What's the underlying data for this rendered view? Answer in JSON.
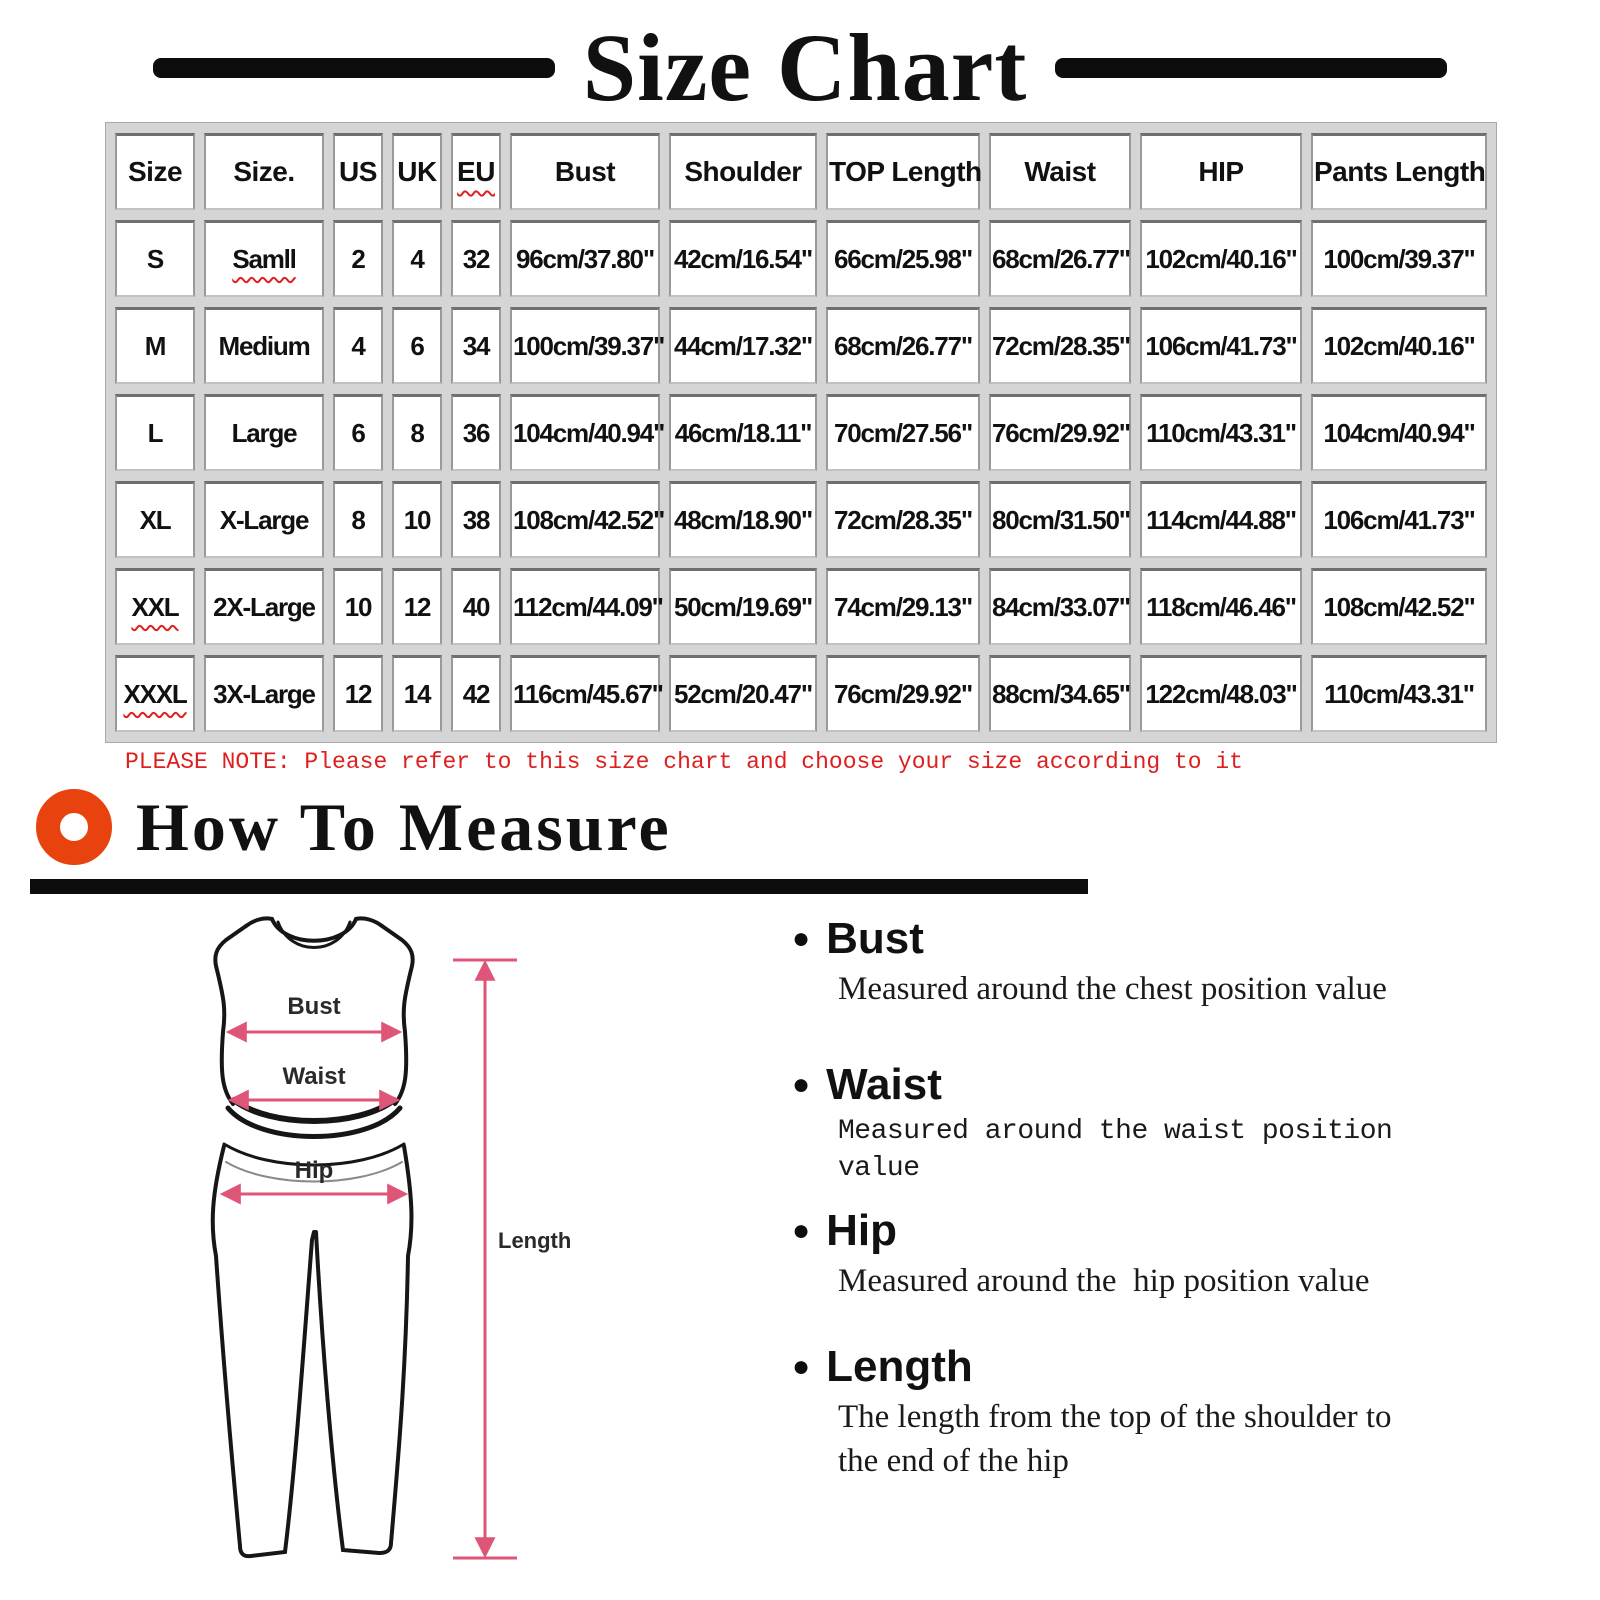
{
  "title": "Size Chart",
  "size_table": {
    "headers": [
      "Size",
      "Size.",
      "US",
      "UK",
      "EU",
      "Bust",
      "Shoulder",
      "TOP Length",
      "Waist",
      "HIP",
      "Pants Length"
    ],
    "header_wavy": [
      4
    ],
    "rows": [
      [
        "S",
        "Samll",
        "2",
        "4",
        "32",
        "96cm/37.80\"",
        "42cm/16.54\"",
        "66cm/25.98\"",
        "68cm/26.77\"",
        "102cm/40.16\"",
        "100cm/39.37\""
      ],
      [
        "M",
        "Medium",
        "4",
        "6",
        "34",
        "100cm/39.37\"",
        "44cm/17.32\"",
        "68cm/26.77\"",
        "72cm/28.35\"",
        "106cm/41.73\"",
        "102cm/40.16\""
      ],
      [
        "L",
        "Large",
        "6",
        "8",
        "36",
        "104cm/40.94\"",
        "46cm/18.11\"",
        "70cm/27.56\"",
        "76cm/29.92\"",
        "110cm/43.31\"",
        "104cm/40.94\""
      ],
      [
        "XL",
        "X-Large",
        "8",
        "10",
        "38",
        "108cm/42.52\"",
        "48cm/18.90\"",
        "72cm/28.35\"",
        "80cm/31.50\"",
        "114cm/44.88\"",
        "106cm/41.73\""
      ],
      [
        "XXL",
        "2X-Large",
        "10",
        "12",
        "40",
        "112cm/44.09\"",
        "50cm/19.69\"",
        "74cm/29.13\"",
        "84cm/33.07\"",
        "118cm/46.46\"",
        "108cm/42.52\""
      ],
      [
        "XXXL",
        "3X-Large",
        "12",
        "14",
        "42",
        "116cm/45.67\"",
        "52cm/20.47\"",
        "76cm/29.92\"",
        "88cm/34.65\"",
        "122cm/48.03\"",
        "110cm/43.31\""
      ]
    ],
    "row_wavy": [
      [
        0,
        1
      ],
      [
        4,
        0
      ],
      [
        5,
        0
      ]
    ]
  },
  "note": "PLEASE NOTE: Please refer to this size chart and choose your size according to it",
  "how_to_measure_title": "How To Measure",
  "diagram_labels": {
    "bust": "Bust",
    "waist": "Waist",
    "hip": "Hip",
    "length": "Length"
  },
  "measure_notes": [
    {
      "term": "Bust",
      "desc": "Measured around the chest position value"
    },
    {
      "term": "Waist",
      "desc": "Measured around the waist position value"
    },
    {
      "term": "Hip",
      "desc": "Measured around the  hip position value"
    },
    {
      "term": "Length",
      "desc": "The length from the top of the shoulder to\nthe end of the hip"
    }
  ],
  "colors": {
    "measure_line_pink": "#dd5577",
    "note_red": "#dd1f1f",
    "donut_orange": "#e8430e",
    "rule_black": "#0d0d0d",
    "table_gap_gray": "#d5d5d5"
  }
}
